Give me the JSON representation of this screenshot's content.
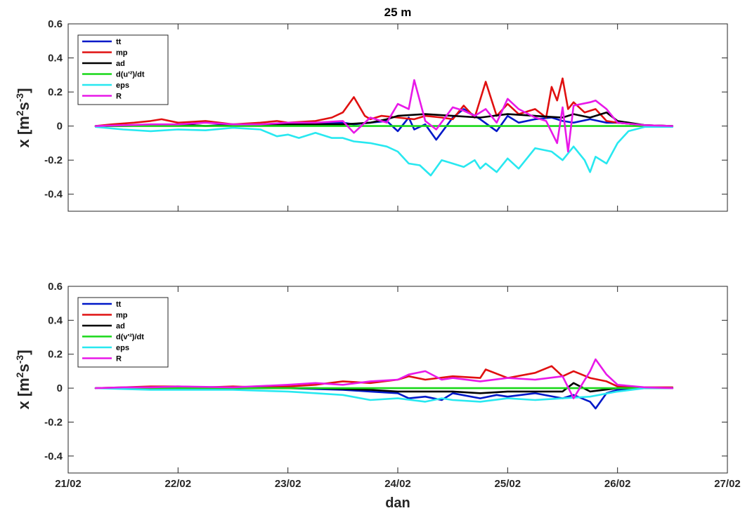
{
  "figure": {
    "title": "25 m",
    "xlabel": "dan",
    "ylabel_prefix": "x [m",
    "ylabel_sup1": "2",
    "ylabel_mid": "s",
    "ylabel_sup2": "-3",
    "ylabel_suffix": "]"
  },
  "colors": {
    "tt": "#0018c8",
    "mp": "#e01010",
    "ad": "#000000",
    "d": "#18d818",
    "eps": "#28e8f0",
    "R": "#e818e8"
  },
  "chart_data": [
    {
      "type": "line",
      "title": "25 m",
      "xlabel": "",
      "ylabel": "x [m^2 s^-3]",
      "x_unit": "day (February)",
      "xlim": [
        21,
        27
      ],
      "ylim": [
        -0.5,
        0.6
      ],
      "yticks": [
        -0.4,
        -0.2,
        0,
        0.2,
        0.4,
        0.6
      ],
      "ytick_labels": [
        "-0.4",
        "-0.2",
        "0",
        "0.2",
        "0.4",
        "0.6"
      ],
      "xticks": [
        21,
        22,
        23,
        24,
        25,
        26,
        27
      ],
      "xtick_labels": [],
      "grid": false,
      "legend_position": "top-left",
      "series": [
        {
          "name": "tt",
          "color_key": "tt",
          "x": [
            21.25,
            21.5,
            21.75,
            22.0,
            22.25,
            22.5,
            22.75,
            23.0,
            23.25,
            23.5,
            23.6,
            23.75,
            23.9,
            24.0,
            24.1,
            24.15,
            24.25,
            24.35,
            24.5,
            24.6,
            24.75,
            24.9,
            25.0,
            25.1,
            25.25,
            25.4,
            25.5,
            25.6,
            25.75,
            25.9,
            26.0,
            26.25,
            26.5
          ],
          "y": [
            0,
            0,
            0.005,
            0.01,
            0,
            0.01,
            0.005,
            0.02,
            0.02,
            0.02,
            0.01,
            0.02,
            0.03,
            -0.03,
            0.05,
            -0.02,
            0.01,
            -0.08,
            0.05,
            0.1,
            0.04,
            -0.03,
            0.06,
            0.02,
            0.04,
            0.05,
            0.03,
            0.02,
            0.04,
            0.02,
            0.02,
            0.005,
            0
          ]
        },
        {
          "name": "mp",
          "color_key": "mp",
          "x": [
            21.25,
            21.4,
            21.6,
            21.75,
            21.85,
            22.0,
            22.25,
            22.5,
            22.75,
            22.9,
            23.0,
            23.25,
            23.4,
            23.5,
            23.6,
            23.7,
            23.75,
            23.85,
            24.0,
            24.15,
            24.25,
            24.4,
            24.5,
            24.6,
            24.7,
            24.8,
            24.9,
            25.0,
            25.1,
            25.25,
            25.35,
            25.4,
            25.45,
            25.5,
            25.55,
            25.6,
            25.7,
            25.8,
            25.9,
            26.0,
            26.25,
            26.5
          ],
          "y": [
            0,
            0.01,
            0.02,
            0.03,
            0.04,
            0.02,
            0.03,
            0.01,
            0.02,
            0.03,
            0.02,
            0.03,
            0.05,
            0.08,
            0.17,
            0.06,
            0.04,
            0.06,
            0.05,
            0.04,
            0.06,
            0.05,
            0.04,
            0.12,
            0.05,
            0.26,
            0.06,
            0.13,
            0.07,
            0.1,
            0.05,
            0.23,
            0.15,
            0.28,
            0.1,
            0.14,
            0.08,
            0.1,
            0.03,
            0.02,
            0.005,
            0
          ]
        },
        {
          "name": "ad",
          "color_key": "ad",
          "x": [
            21.25,
            21.5,
            21.75,
            22.0,
            22.25,
            22.5,
            22.75,
            23.0,
            23.25,
            23.5,
            23.75,
            23.9,
            24.0,
            24.25,
            24.5,
            24.75,
            25.0,
            25.25,
            25.5,
            25.6,
            25.75,
            25.9,
            26.0,
            26.25,
            26.5
          ],
          "y": [
            0,
            0,
            0.005,
            0.01,
            0,
            0.005,
            0.005,
            0.01,
            0.01,
            0.01,
            0.02,
            0.04,
            0.06,
            0.07,
            0.06,
            0.05,
            0.07,
            0.06,
            0.05,
            0.07,
            0.05,
            0.08,
            0.03,
            0.005,
            0
          ]
        },
        {
          "name": "d(u'²)/dt",
          "color_key": "d",
          "x": [
            21.25,
            26.5
          ],
          "y": [
            0,
            0
          ]
        },
        {
          "name": "eps",
          "color_key": "eps",
          "x": [
            21.25,
            21.5,
            21.75,
            22.0,
            22.25,
            22.5,
            22.75,
            22.9,
            23.0,
            23.1,
            23.25,
            23.4,
            23.5,
            23.6,
            23.75,
            23.9,
            24.0,
            24.1,
            24.2,
            24.3,
            24.4,
            24.5,
            24.6,
            24.7,
            24.75,
            24.8,
            24.9,
            25.0,
            25.1,
            25.25,
            25.4,
            25.5,
            25.6,
            25.7,
            25.75,
            25.8,
            25.9,
            26.0,
            26.1,
            26.25,
            26.5
          ],
          "y": [
            -0.005,
            -0.02,
            -0.03,
            -0.02,
            -0.025,
            -0.01,
            -0.02,
            -0.06,
            -0.05,
            -0.07,
            -0.04,
            -0.07,
            -0.07,
            -0.09,
            -0.1,
            -0.12,
            -0.15,
            -0.22,
            -0.23,
            -0.29,
            -0.2,
            -0.22,
            -0.24,
            -0.2,
            -0.25,
            -0.22,
            -0.27,
            -0.19,
            -0.25,
            -0.13,
            -0.15,
            -0.2,
            -0.12,
            -0.2,
            -0.27,
            -0.18,
            -0.22,
            -0.1,
            -0.03,
            -0.005,
            -0.005
          ]
        },
        {
          "name": "R",
          "color_key": "R",
          "x": [
            21.25,
            21.5,
            21.75,
            22.0,
            22.25,
            22.5,
            22.75,
            23.0,
            23.25,
            23.5,
            23.6,
            23.75,
            23.9,
            24.0,
            24.1,
            24.15,
            24.25,
            24.35,
            24.5,
            24.6,
            24.7,
            24.8,
            24.9,
            25.0,
            25.1,
            25.25,
            25.35,
            25.45,
            25.5,
            25.55,
            25.6,
            25.75,
            25.8,
            25.9,
            26.0,
            26.25,
            26.5
          ],
          "y": [
            0,
            0.005,
            0.01,
            0.01,
            0.02,
            0.01,
            0.01,
            0.02,
            0.02,
            0.03,
            -0.04,
            0.05,
            0.02,
            0.13,
            0.1,
            0.27,
            0.03,
            -0.02,
            0.11,
            0.09,
            0.06,
            0.1,
            0.02,
            0.16,
            0.1,
            0.05,
            0.03,
            -0.1,
            0.11,
            -0.15,
            0.12,
            0.14,
            0.15,
            0.1,
            0.02,
            0.005,
            0
          ]
        }
      ]
    },
    {
      "type": "line",
      "title": "",
      "xlabel": "dan",
      "ylabel": "x [m^2 s^-3]",
      "x_unit": "day (February)",
      "xlim": [
        21,
        27
      ],
      "ylim": [
        -0.5,
        0.6
      ],
      "yticks": [
        -0.4,
        -0.2,
        0,
        0.2,
        0.4,
        0.6
      ],
      "ytick_labels": [
        "-0.4",
        "-0.2",
        "0",
        "0.2",
        "0.4",
        "0.6"
      ],
      "xticks": [
        21,
        22,
        23,
        24,
        25,
        26,
        27
      ],
      "xtick_labels": [
        "21/02",
        "22/02",
        "23/02",
        "24/02",
        "25/02",
        "26/02",
        "27/02"
      ],
      "grid": false,
      "legend_position": "top-left",
      "series": [
        {
          "name": "tt",
          "color_key": "tt",
          "x": [
            21.25,
            21.5,
            21.75,
            22.0,
            22.5,
            23.0,
            23.25,
            23.5,
            23.75,
            24.0,
            24.1,
            24.25,
            24.4,
            24.5,
            24.75,
            24.9,
            25.0,
            25.25,
            25.5,
            25.6,
            25.75,
            25.8,
            25.9,
            26.0,
            26.25,
            26.5
          ],
          "y": [
            0,
            0,
            0,
            0,
            0,
            0,
            -0.005,
            -0.01,
            -0.02,
            -0.03,
            -0.06,
            -0.05,
            -0.07,
            -0.03,
            -0.06,
            -0.04,
            -0.05,
            -0.03,
            -0.06,
            -0.04,
            -0.08,
            -0.12,
            -0.03,
            -0.01,
            0,
            0
          ]
        },
        {
          "name": "mp",
          "color_key": "mp",
          "x": [
            21.25,
            21.5,
            21.75,
            22.0,
            22.25,
            22.5,
            22.75,
            23.0,
            23.25,
            23.5,
            23.75,
            24.0,
            24.1,
            24.25,
            24.5,
            24.75,
            24.8,
            25.0,
            25.25,
            25.4,
            25.5,
            25.6,
            25.75,
            25.9,
            26.0,
            26.25,
            26.5
          ],
          "y": [
            0,
            0.005,
            0.01,
            0.01,
            0.005,
            0.01,
            0.005,
            0.01,
            0.02,
            0.04,
            0.03,
            0.05,
            0.07,
            0.05,
            0.07,
            0.06,
            0.11,
            0.06,
            0.09,
            0.13,
            0.07,
            0.1,
            0.06,
            0.04,
            0.01,
            0.005,
            0.005
          ]
        },
        {
          "name": "ad",
          "color_key": "ad",
          "x": [
            21.25,
            21.75,
            22.25,
            22.75,
            23.25,
            23.75,
            24.0,
            24.25,
            24.5,
            24.75,
            25.0,
            25.25,
            25.5,
            25.6,
            25.75,
            26.0,
            26.25,
            26.5
          ],
          "y": [
            0,
            0,
            0,
            0,
            0,
            -0.01,
            -0.02,
            -0.02,
            -0.02,
            -0.03,
            -0.02,
            -0.02,
            -0.02,
            0.03,
            -0.02,
            0,
            0,
            0
          ]
        },
        {
          "name": "d(v'²)/dt",
          "color_key": "d",
          "x": [
            21.25,
            26.5
          ],
          "y": [
            0,
            0
          ]
        },
        {
          "name": "eps",
          "color_key": "eps",
          "x": [
            21.25,
            21.5,
            21.75,
            22.0,
            22.5,
            23.0,
            23.25,
            23.5,
            23.75,
            24.0,
            24.25,
            24.4,
            24.5,
            24.75,
            25.0,
            25.25,
            25.5,
            25.75,
            26.0,
            26.25,
            26.5
          ],
          "y": [
            0,
            -0.005,
            -0.01,
            -0.01,
            -0.01,
            -0.02,
            -0.03,
            -0.04,
            -0.07,
            -0.06,
            -0.08,
            -0.06,
            -0.07,
            -0.08,
            -0.06,
            -0.07,
            -0.06,
            -0.05,
            -0.02,
            0,
            0
          ]
        },
        {
          "name": "R",
          "color_key": "R",
          "x": [
            21.25,
            21.5,
            21.75,
            22.0,
            22.5,
            23.0,
            23.25,
            23.5,
            23.75,
            24.0,
            24.1,
            24.25,
            24.4,
            24.5,
            24.75,
            25.0,
            25.25,
            25.5,
            25.6,
            25.75,
            25.8,
            25.9,
            26.0,
            26.25,
            26.5
          ],
          "y": [
            0,
            0.005,
            0.005,
            0.01,
            0.005,
            0.02,
            0.03,
            0.02,
            0.04,
            0.05,
            0.08,
            0.1,
            0.05,
            0.06,
            0.04,
            0.06,
            0.05,
            0.07,
            -0.06,
            0.1,
            0.17,
            0.08,
            0.02,
            0.005,
            0
          ]
        }
      ]
    }
  ]
}
